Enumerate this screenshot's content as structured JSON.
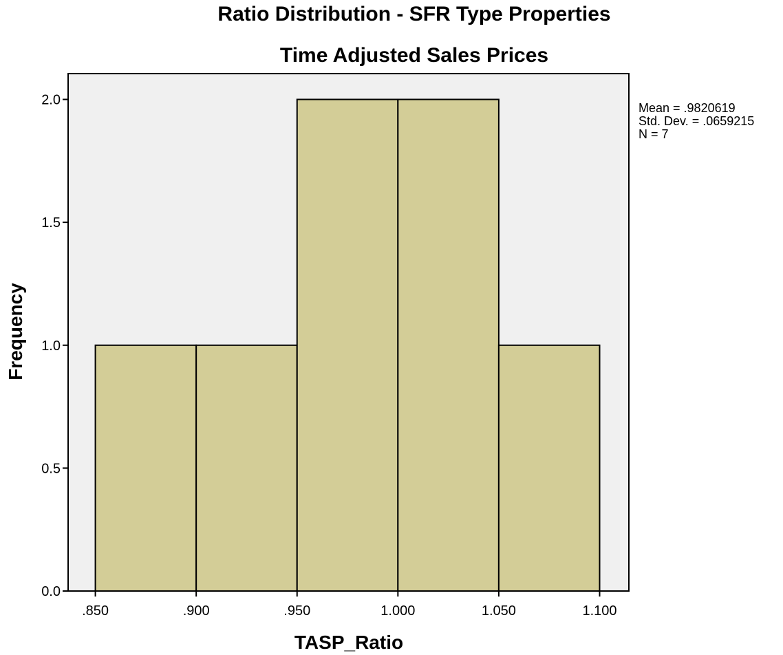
{
  "chart_data": {
    "type": "bar",
    "title": "Ratio Distribution - SFR Type Properties",
    "subtitle": "Time Adjusted Sales Prices",
    "xlabel": "TASP_Ratio",
    "ylabel": "Frequency",
    "bins": [
      {
        "start": 0.85,
        "end": 0.9,
        "count": 1
      },
      {
        "start": 0.9,
        "end": 0.95,
        "count": 1
      },
      {
        "start": 0.95,
        "end": 1.0,
        "count": 2
      },
      {
        "start": 1.0,
        "end": 1.05,
        "count": 2
      },
      {
        "start": 1.05,
        "end": 1.1,
        "count": 1
      }
    ],
    "xlim": [
      0.8365,
      1.1145
    ],
    "ylim": [
      0,
      2.105
    ],
    "x_ticks": [
      {
        "value": 0.85,
        "label": ".850"
      },
      {
        "value": 0.9,
        "label": ".900"
      },
      {
        "value": 0.95,
        "label": ".950"
      },
      {
        "value": 1.0,
        "label": "1.000"
      },
      {
        "value": 1.05,
        "label": "1.050"
      },
      {
        "value": 1.1,
        "label": "1.100"
      }
    ],
    "y_ticks": [
      {
        "value": 0.0,
        "label": "0.0"
      },
      {
        "value": 0.5,
        "label": "0.5"
      },
      {
        "value": 1.0,
        "label": "1.0"
      },
      {
        "value": 1.5,
        "label": "1.5"
      },
      {
        "value": 2.0,
        "label": "2.0"
      }
    ],
    "stats": {
      "mean": "Mean = .9820619",
      "std_dev": "Std. Dev. = .0659215",
      "n": "N = 7"
    },
    "grid": false,
    "colors": {
      "bar_fill": "#d3cd97",
      "plot_background": "#f0f0f0",
      "stroke": "#000000"
    }
  }
}
